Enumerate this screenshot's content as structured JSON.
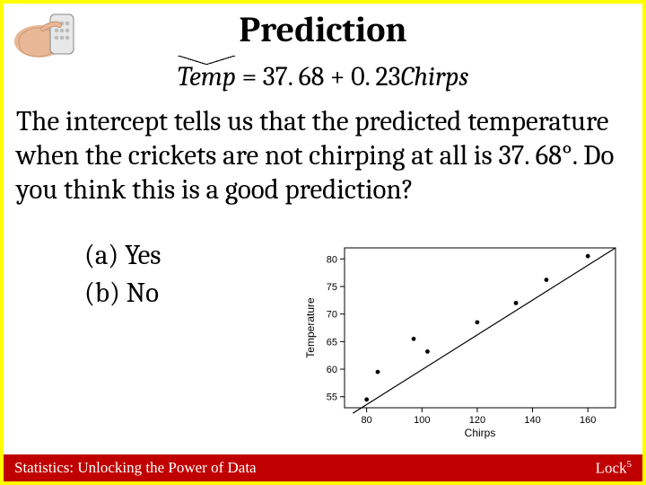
{
  "title": "Prediction",
  "equation": {
    "lhs": "Temp",
    "rhs_pre": " = 37. 68 + 0. 23",
    "rhs_var": "Chirps"
  },
  "body_text": "The intercept tells us that the predicted temperature when the crickets are not chirping at all is 37. 68°.  Do you think this is a good prediction?",
  "options": {
    "a": "(a) Yes",
    "b": "(b) No"
  },
  "chart": {
    "type": "scatter",
    "xlabel": "Chirps",
    "ylabel": "Temperature",
    "xlim": [
      72,
      170
    ],
    "ylim": [
      53,
      82
    ],
    "xticks": [
      80,
      100,
      120,
      140,
      160
    ],
    "yticks": [
      55,
      60,
      65,
      70,
      75,
      80
    ],
    "points": [
      [
        80,
        54.5
      ],
      [
        84,
        59.5
      ],
      [
        97,
        65.5
      ],
      [
        102,
        63.2
      ],
      [
        120,
        68.5
      ],
      [
        134,
        72
      ],
      [
        145,
        76.2
      ],
      [
        160,
        80.5
      ]
    ],
    "line": {
      "x0": 75,
      "y0": 52,
      "x1": 170,
      "y1": 82
    },
    "point_color": "#000000",
    "line_color": "#000000",
    "axis_color": "#000000",
    "background_color": "#ffffff",
    "label_fontsize": 12,
    "tick_fontsize": 11,
    "point_radius": 2.4,
    "line_width": 1.2
  },
  "footer": {
    "left": "Statistics: Unlocking the Power of Data",
    "right_base": "Lock",
    "right_sup": "5"
  },
  "colors": {
    "border": "#ffff00",
    "footer_bg": "#c00000",
    "footer_text": "#ffffff",
    "text": "#000000"
  }
}
